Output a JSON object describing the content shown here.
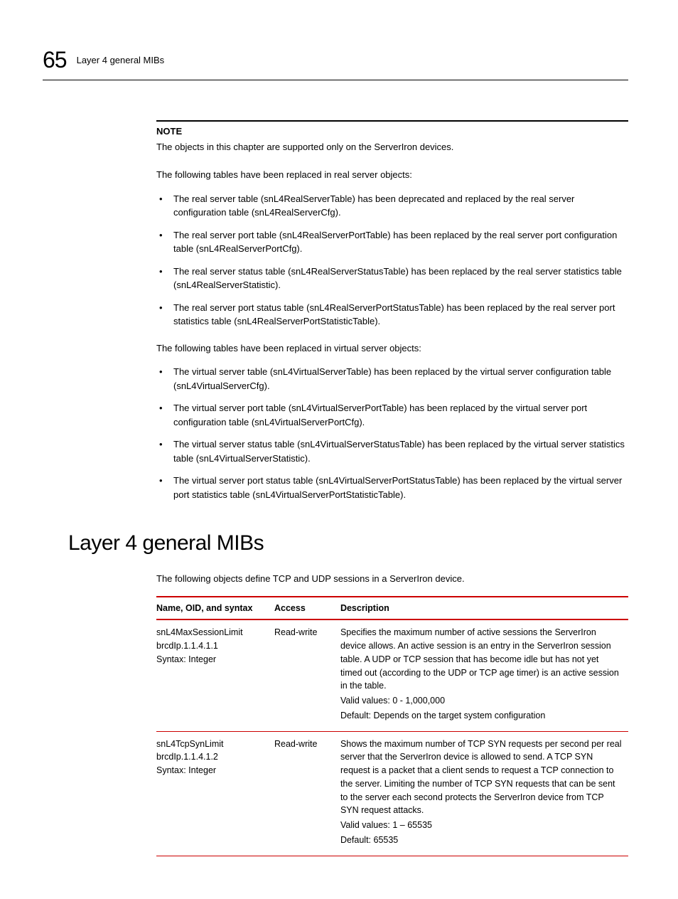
{
  "header": {
    "chapter_number": "65",
    "chapter_title": "Layer 4 general MIBs"
  },
  "note": {
    "label": "NOTE",
    "text": "The objects in this chapter are supported only on the ServerIron devices."
  },
  "intro_real": "The following tables have been replaced in real server objects:",
  "bullets_real": [
    "The real server table (snL4RealServerTable) has been deprecated and replaced by the real server configuration table (snL4RealServerCfg).",
    "The real server port table (snL4RealServerPortTable) has been replaced by the real server port configuration table (snL4RealServerPortCfg).",
    "The real server status table (snL4RealServerStatusTable) has been replaced by the real server statistics table (snL4RealServerStatistic).",
    "The real server port status table (snL4RealServerPortStatusTable) has been replaced by the real server port statistics table (snL4RealServerPortStatisticTable)."
  ],
  "intro_virtual": "The following tables have been replaced in virtual server objects:",
  "bullets_virtual": [
    "The virtual server table (snL4VirtualServerTable) has been replaced by the virtual server configuration table (snL4VirtualServerCfg).",
    "The virtual server port table (snL4VirtualServerPortTable) has been replaced by the virtual server port configuration table (snL4VirtualServerPortCfg).",
    "The virtual server status table (snL4VirtualServerStatusTable) has been replaced by the virtual server statistics table (snL4VirtualServerStatistic).",
    "The virtual server port status table (snL4VirtualServerPortStatusTable) has been replaced by the virtual server port statistics table (snL4VirtualServerPortStatisticTable)."
  ],
  "section_heading": "Layer 4 general MIBs",
  "section_intro": "The following objects define TCP and UDP sessions in a ServerIron device.",
  "table": {
    "columns": [
      "Name, OID, and syntax",
      "Access",
      "Description"
    ],
    "rows": [
      {
        "name_lines": [
          "snL4MaxSessionLimit",
          "brcdIp.1.1.4.1.1",
          "Syntax: Integer"
        ],
        "access": "Read-write",
        "desc_main": "Specifies the maximum number of active sessions the ServerIron device allows. An active session is an entry in the ServerIron session table. A UDP or TCP session that has become idle but has not yet timed out (according to the UDP or TCP age timer) is an active session in the table.",
        "desc_valid": "Valid values: 0 - 1,000,000",
        "desc_default": "Default: Depends on the target system configuration"
      },
      {
        "name_lines": [
          "snL4TcpSynLimit",
          "brcdIp.1.1.4.1.2",
          "Syntax: Integer"
        ],
        "access": "Read-write",
        "desc_main": "Shows the maximum number of TCP SYN requests per second per real server that the ServerIron device is allowed to send. A TCP SYN request is a packet that a client sends to request a TCP connection to the server. Limiting the number of TCP SYN requests that can be sent to the server each second protects the ServerIron device from TCP SYN request attacks.",
        "desc_valid": "Valid values: 1 – 65535",
        "desc_default": "Default: 65535"
      }
    ]
  }
}
